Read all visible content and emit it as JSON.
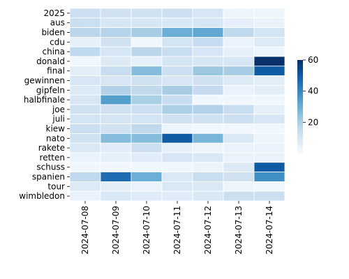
{
  "chart_data": {
    "type": "heatmap",
    "title": "",
    "xlabel": "",
    "ylabel": "",
    "x": [
      "2024-07-08",
      "2024-07-09",
      "2024-07-10",
      "2024-07-11",
      "2024-07-12",
      "2024-07-13",
      "2024-07-14"
    ],
    "y": [
      "2025",
      "aus",
      "biden",
      "cdu",
      "china",
      "donald",
      "final",
      "gewinnen",
      "gipfeln",
      "halbfinale",
      "joe",
      "juli",
      "kiew",
      "nato",
      "rakete",
      "retten",
      "schuss",
      "spanien",
      "tour",
      "wimbledon"
    ],
    "values": [
      [
        13,
        12,
        12,
        13,
        10,
        3,
        3
      ],
      [
        13,
        10,
        10,
        9,
        10,
        5,
        4
      ],
      [
        17,
        18,
        21,
        30,
        32,
        16,
        11
      ],
      [
        5,
        12,
        2,
        11,
        15,
        4,
        8
      ],
      [
        16,
        10,
        17,
        14,
        10,
        5,
        3
      ],
      [
        2,
        8,
        5,
        11,
        10,
        10,
        60
      ],
      [
        6,
        14,
        26,
        13,
        23,
        21,
        50
      ],
      [
        10,
        10,
        12,
        10,
        12,
        8,
        6
      ],
      [
        8,
        19,
        16,
        21,
        15,
        4,
        6
      ],
      [
        10,
        34,
        20,
        14,
        2,
        2,
        2
      ],
      [
        12,
        12,
        13,
        20,
        19,
        14,
        5
      ],
      [
        11,
        11,
        11,
        12,
        12,
        13,
        10
      ],
      [
        13,
        12,
        16,
        3,
        2,
        2,
        2
      ],
      [
        12,
        26,
        26,
        50,
        28,
        9,
        3
      ],
      [
        9,
        7,
        13,
        5,
        3,
        4,
        4
      ],
      [
        4,
        5,
        7,
        10,
        9,
        4,
        4
      ],
      [
        2,
        2,
        2,
        2,
        3,
        8,
        50
      ],
      [
        16,
        46,
        30,
        9,
        14,
        12,
        38
      ],
      [
        8,
        6,
        4,
        9,
        9,
        3,
        2
      ],
      [
        4,
        9,
        7,
        7,
        9,
        13,
        13
      ]
    ],
    "colorbar": {
      "min": 0,
      "max": 60,
      "ticks": [
        "20",
        "40",
        "60"
      ],
      "colormap": "Blues"
    },
    "grid": true
  }
}
